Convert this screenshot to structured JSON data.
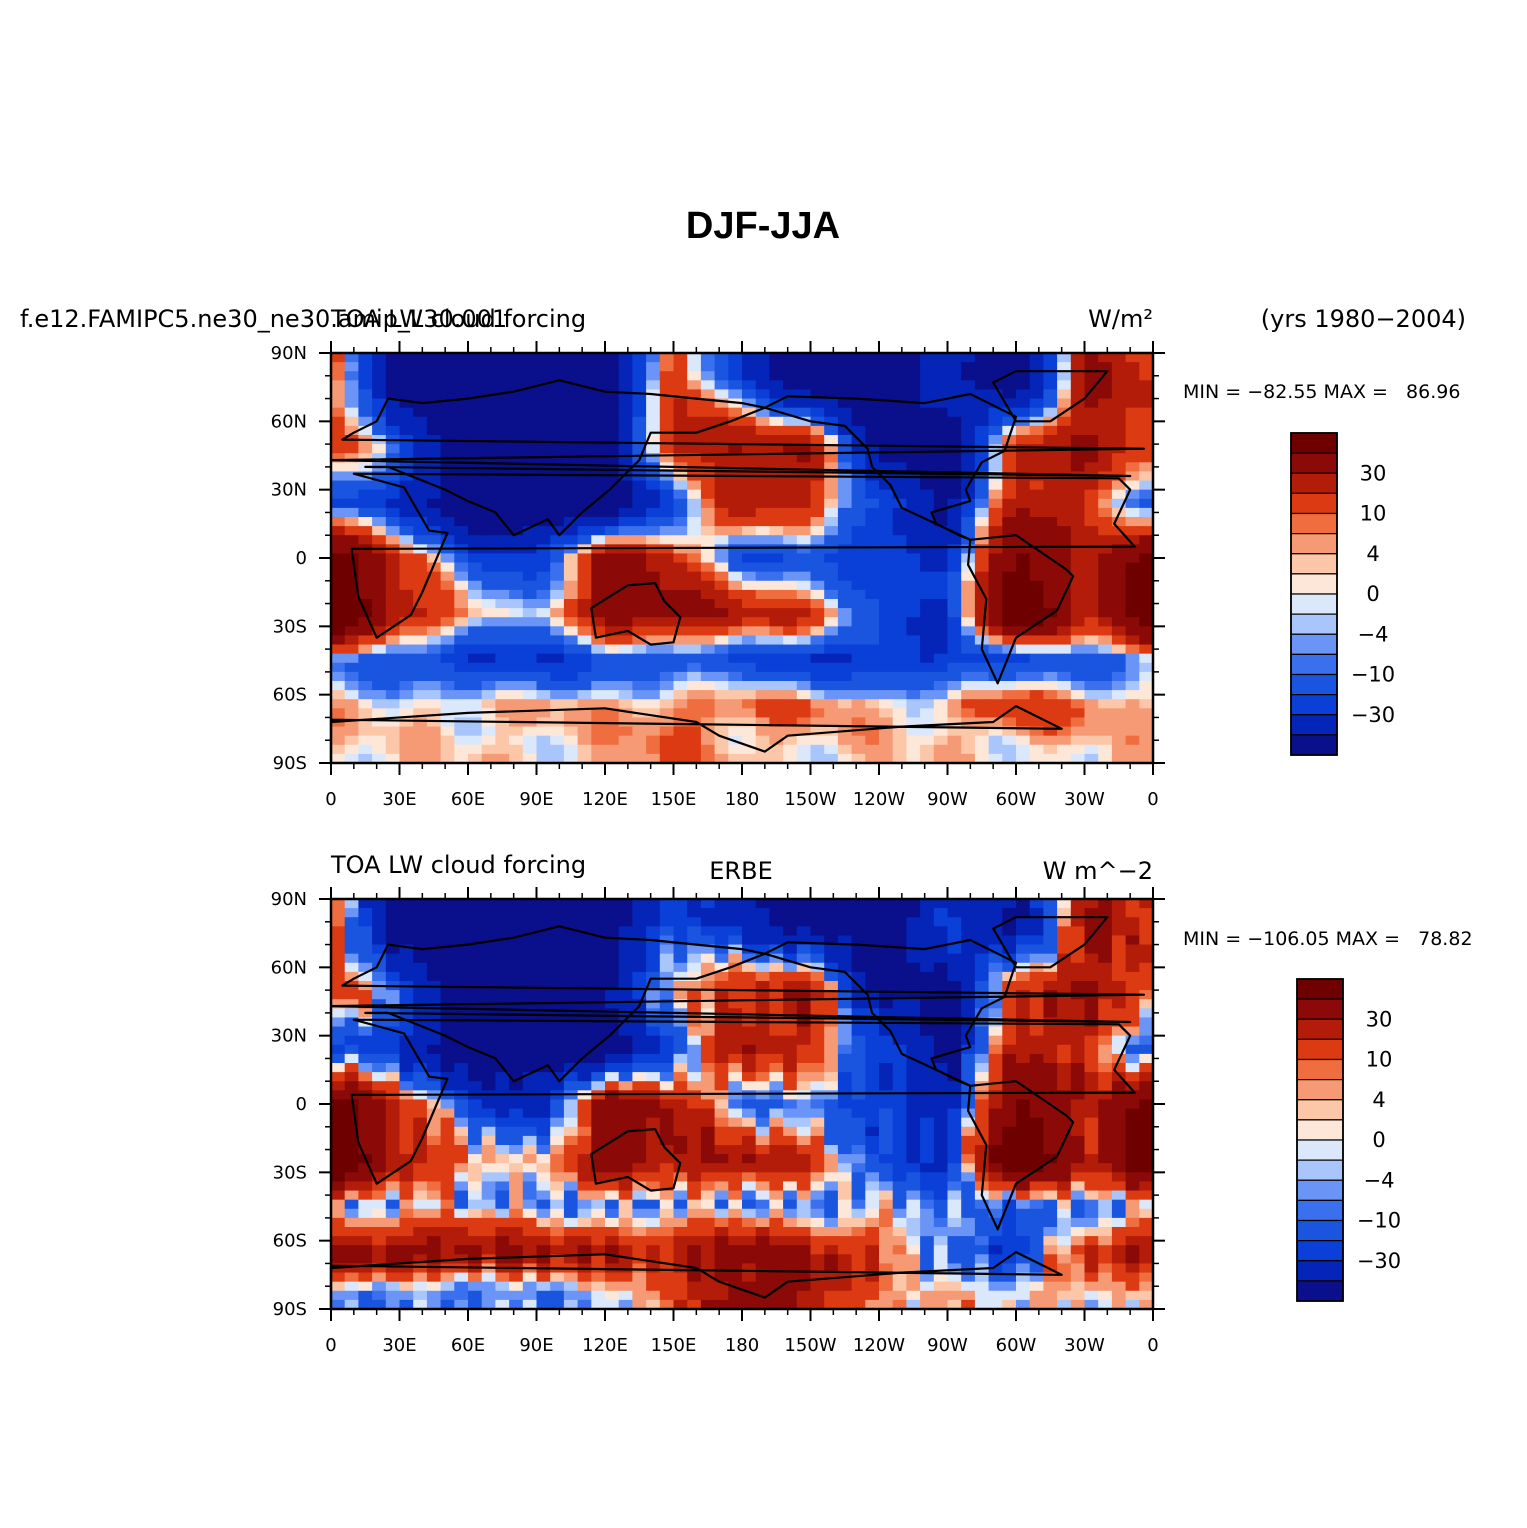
{
  "figure_title": "DJF-JJA",
  "chart_data": [
    {
      "type": "heatmap",
      "panel": "top",
      "case_name": "f.e12.FAMIPC5.ne30_ne30.amip_L30.001",
      "variable": "TOA LW cloud forcing",
      "units": "W/m²",
      "years": "(yrs 1980−2004)",
      "stats": "MIN = −82.55 MAX =   86.96",
      "min": -82.55,
      "max": 86.96,
      "lat_ticks": [
        "90N",
        "60N",
        "30N",
        "0",
        "30S",
        "60S",
        "90S"
      ],
      "lon_ticks": [
        "0",
        "30E",
        "60E",
        "90E",
        "120E",
        "150E",
        "180",
        "150W",
        "120W",
        "90W",
        "60W",
        "30W",
        "0"
      ],
      "colorbar_labels": [
        "30",
        "10",
        "4",
        "0",
        "−4",
        "−10",
        "−30"
      ],
      "zones": [
        {
          "lat": 80,
          "lon": [
            20,
            -80,
            -80,
            -80,
            -80,
            20,
            -30,
            -80,
            -80,
            -30,
            -80,
            30
          ]
        },
        {
          "lat": 50,
          "lon": [
            20,
            -10,
            -70,
            -80,
            -60,
            30,
            30,
            30,
            -60,
            -70,
            20,
            30
          ]
        },
        {
          "lat": 25,
          "lon": [
            -20,
            -30,
            -80,
            -80,
            -80,
            -20,
            30,
            20,
            -20,
            -60,
            30,
            20
          ]
        },
        {
          "lat": 0,
          "lon": [
            60,
            20,
            -20,
            -30,
            40,
            20,
            -20,
            -20,
            -30,
            -30,
            60,
            20
          ]
        },
        {
          "lat": -25,
          "lon": [
            80,
            30,
            10,
            -10,
            40,
            40,
            30,
            20,
            -20,
            -30,
            80,
            20
          ]
        },
        {
          "lat": -45,
          "lon": [
            -10,
            -20,
            -30,
            -30,
            -20,
            -20,
            -20,
            -30,
            -30,
            -30,
            -20,
            -20
          ]
        },
        {
          "lat": -65,
          "lon": [
            4,
            2,
            4,
            4,
            4,
            10,
            10,
            10,
            4,
            4,
            20,
            10
          ]
        },
        {
          "lat": -82,
          "lon": [
            2,
            2,
            2,
            2,
            4,
            10,
            4,
            2,
            2,
            2,
            2,
            2
          ]
        }
      ]
    },
    {
      "type": "heatmap",
      "panel": "bottom",
      "variable": "TOA LW cloud forcing",
      "dataset": "ERBE",
      "units": "W m^−2",
      "stats": "MIN = −106.05 MAX =   78.82",
      "min": -106.05,
      "max": 78.82,
      "lat_ticks": [
        "90N",
        "60N",
        "30N",
        "0",
        "30S",
        "60S",
        "90S"
      ],
      "lon_ticks": [
        "0",
        "30E",
        "60E",
        "90E",
        "120E",
        "150E",
        "180",
        "150W",
        "120W",
        "90W",
        "60W",
        "30W",
        "0"
      ],
      "colorbar_labels": [
        "30",
        "10",
        "4",
        "0",
        "−4",
        "−10",
        "−30"
      ],
      "zones": [
        {
          "lat": 80,
          "lon": [
            20,
            -80,
            -80,
            -80,
            -80,
            -20,
            -40,
            -60,
            -80,
            -20,
            -60,
            30
          ]
        },
        {
          "lat": 50,
          "lon": [
            20,
            -10,
            -70,
            -80,
            -60,
            10,
            20,
            30,
            -60,
            -60,
            20,
            30
          ]
        },
        {
          "lat": 25,
          "lon": [
            -20,
            -30,
            -80,
            -80,
            -70,
            -20,
            30,
            20,
            -20,
            -60,
            30,
            20
          ]
        },
        {
          "lat": 0,
          "lon": [
            60,
            20,
            -20,
            -40,
            40,
            30,
            -10,
            -10,
            -30,
            -40,
            60,
            20
          ]
        },
        {
          "lat": -25,
          "lon": [
            80,
            30,
            10,
            -4,
            40,
            30,
            30,
            20,
            -20,
            -30,
            80,
            20
          ]
        },
        {
          "lat": -45,
          "lon": [
            -10,
            -4,
            -4,
            -4,
            -10,
            -10,
            -4,
            -10,
            -4,
            -10,
            -10,
            -10
          ]
        },
        {
          "lat": -65,
          "lon": [
            40,
            40,
            40,
            30,
            30,
            30,
            40,
            30,
            20,
            -10,
            -30,
            20
          ]
        },
        {
          "lat": -82,
          "lon": [
            -4,
            -10,
            -10,
            -4,
            -4,
            10,
            40,
            30,
            4,
            2,
            4,
            4
          ]
        }
      ]
    }
  ],
  "colors": {
    "levels": [
      -50,
      -30,
      -20,
      -10,
      -8,
      -4,
      -2,
      0,
      2,
      4,
      8,
      10,
      20,
      30,
      50
    ],
    "palette": [
      "#0a0f8c",
      "#0525b8",
      "#0a40d8",
      "#1a55e0",
      "#3a70ee",
      "#6a95f6",
      "#a8c6fb",
      "#dbe8fc",
      "#fde7d8",
      "#fbc7a8",
      "#f59a74",
      "#ef6d3e",
      "#dc3a12",
      "#b41c0a",
      "#8b0a08",
      "#6e0000"
    ]
  }
}
